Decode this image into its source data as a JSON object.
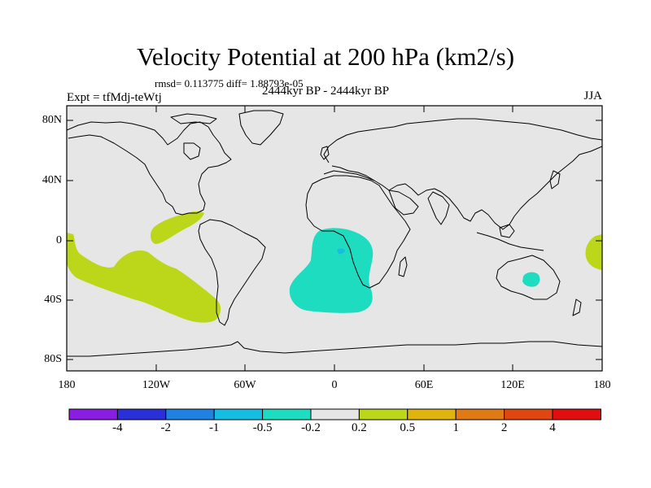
{
  "title": "Velocity Potential at 200 hPa (km2/s)",
  "stats": "rmsd= 0.113775 diff= 1.88793e-05",
  "experiment": "Expt = tfMdj-teWtj",
  "period": "2444kyr BP - 2444kyr BP",
  "season": "JJA",
  "lat_labels": [
    "80N",
    "40N",
    "0",
    "40S",
    "80S"
  ],
  "lon_labels": [
    "180",
    "120W",
    "60W",
    "0",
    "60E",
    "120E",
    "180"
  ],
  "colorbar": {
    "labels": [
      "-4",
      "-2",
      "-1",
      "-0.5",
      "-0.2",
      "0.2",
      "0.5",
      "1",
      "2",
      "4"
    ],
    "colors": [
      "#8a1ee0",
      "#2b2fd8",
      "#1f82e0",
      "#17bde0",
      "#1edcc0",
      "#e6e6e6",
      "#bcd619",
      "#e0b40f",
      "#e07a14",
      "#e0460f",
      "#e00e0e"
    ]
  },
  "map_colors": {
    "ocean": "#e6e6e6",
    "positive_small": "#bcd619",
    "negative_small": "#1edcc0",
    "negative_medium": "#17bde0",
    "coast": "#000000"
  }
}
